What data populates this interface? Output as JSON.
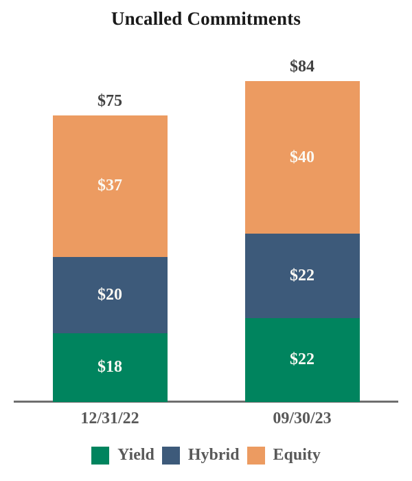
{
  "chart_data": {
    "type": "bar",
    "stacked": true,
    "title": "Uncalled Commitments",
    "categories": [
      "12/31/22",
      "09/30/23"
    ],
    "series": [
      {
        "name": "Yield",
        "color": "#00845E",
        "values": [
          18,
          22
        ]
      },
      {
        "name": "Hybrid",
        "color": "#3D5A7A",
        "values": [
          20,
          22
        ]
      },
      {
        "name": "Equity",
        "color": "#EC9B61",
        "values": [
          37,
          40
        ]
      }
    ],
    "totals": [
      75,
      84
    ],
    "total_labels": [
      "$75",
      "$84"
    ],
    "segment_labels": [
      [
        "$18",
        "$20",
        "$37"
      ],
      [
        "$22",
        "$22",
        "$40"
      ]
    ],
    "value_prefix": "$",
    "xlabel": "",
    "ylabel": "",
    "axis_line_color": "#6e6e6e",
    "label_color_inside": "#fbf9f3",
    "label_color_total": "#424242",
    "label_color_axis": "#595959",
    "legend_position": "bottom",
    "grid": false
  }
}
